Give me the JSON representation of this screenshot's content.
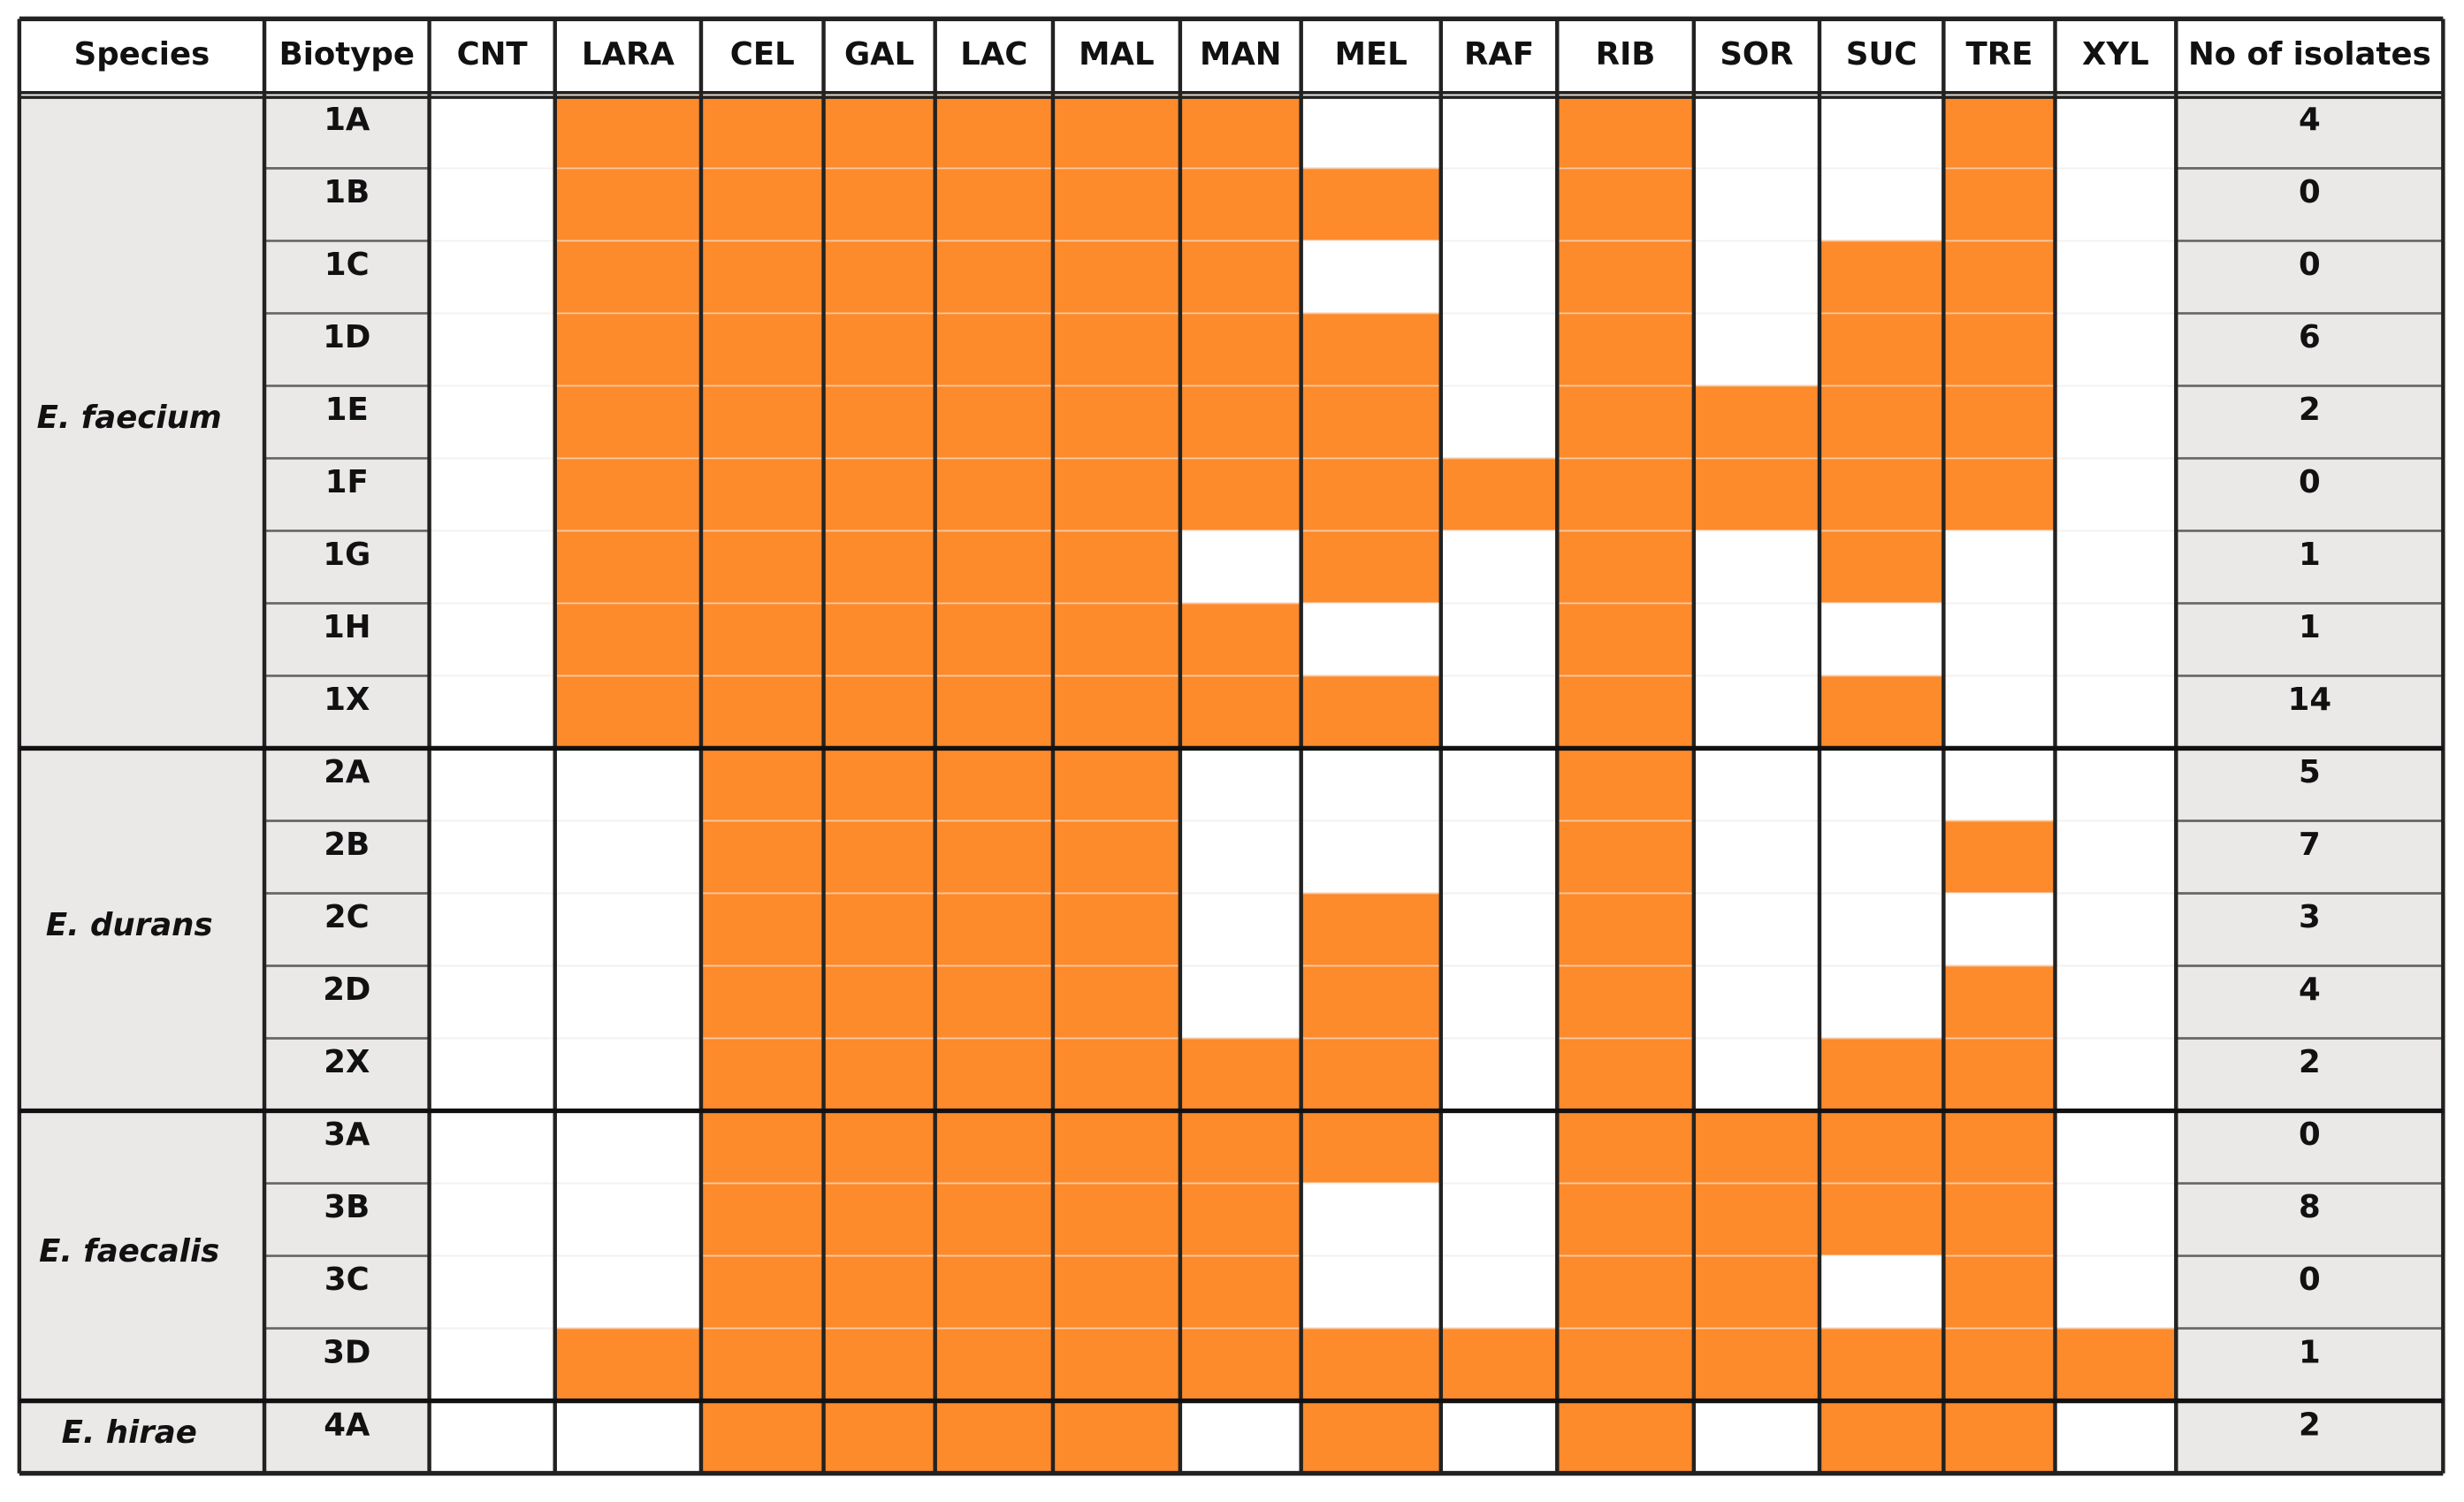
{
  "table": {
    "header": [
      "Species",
      "Biotype",
      "CNT",
      "LARA",
      "CEL",
      "GAL",
      "LAC",
      "MAL",
      "MAN",
      "MEL",
      "RAF",
      "RIB",
      "SOR",
      "SUC",
      "TRE",
      "XYL",
      "No of isolates"
    ],
    "groups": [
      {
        "species": "E. faecium",
        "rows": [
          {
            "biotype": "1A",
            "results": [
              0,
              1,
              1,
              1,
              1,
              1,
              1,
              0,
              0,
              1,
              0,
              0,
              1,
              0
            ],
            "isolates": 4
          },
          {
            "biotype": "1B",
            "results": [
              0,
              1,
              1,
              1,
              1,
              1,
              1,
              1,
              0,
              1,
              0,
              0,
              1,
              0
            ],
            "isolates": 0
          },
          {
            "biotype": "1C",
            "results": [
              0,
              1,
              1,
              1,
              1,
              1,
              1,
              0,
              0,
              1,
              0,
              1,
              1,
              0
            ],
            "isolates": 0
          },
          {
            "biotype": "1D",
            "results": [
              0,
              1,
              1,
              1,
              1,
              1,
              1,
              1,
              0,
              1,
              0,
              1,
              1,
              0
            ],
            "isolates": 6
          },
          {
            "biotype": "1E",
            "results": [
              0,
              1,
              1,
              1,
              1,
              1,
              1,
              1,
              0,
              1,
              1,
              1,
              1,
              0
            ],
            "isolates": 2
          },
          {
            "biotype": "1F",
            "results": [
              0,
              1,
              1,
              1,
              1,
              1,
              1,
              1,
              1,
              1,
              1,
              1,
              1,
              0
            ],
            "isolates": 0
          },
          {
            "biotype": "1G",
            "results": [
              0,
              1,
              1,
              1,
              1,
              1,
              0,
              1,
              0,
              1,
              0,
              1,
              0,
              0
            ],
            "isolates": 1
          },
          {
            "biotype": "1H",
            "results": [
              0,
              1,
              1,
              1,
              1,
              1,
              1,
              0,
              0,
              1,
              0,
              0,
              0,
              0
            ],
            "isolates": 1
          },
          {
            "biotype": "1X",
            "results": [
              0,
              1,
              1,
              1,
              1,
              1,
              1,
              1,
              0,
              1,
              0,
              1,
              0,
              0
            ],
            "isolates": 14
          }
        ]
      },
      {
        "species": "E. durans",
        "rows": [
          {
            "biotype": "2A",
            "results": [
              0,
              0,
              1,
              1,
              1,
              1,
              0,
              0,
              0,
              1,
              0,
              0,
              0,
              0
            ],
            "isolates": 5
          },
          {
            "biotype": "2B",
            "results": [
              0,
              0,
              1,
              1,
              1,
              1,
              0,
              0,
              0,
              1,
              0,
              0,
              1,
              0
            ],
            "isolates": 7
          },
          {
            "biotype": "2C",
            "results": [
              0,
              0,
              1,
              1,
              1,
              1,
              0,
              1,
              0,
              1,
              0,
              0,
              0,
              0
            ],
            "isolates": 3
          },
          {
            "biotype": "2D",
            "results": [
              0,
              0,
              1,
              1,
              1,
              1,
              0,
              1,
              0,
              1,
              0,
              0,
              1,
              0
            ],
            "isolates": 4
          },
          {
            "biotype": "2X",
            "results": [
              0,
              0,
              1,
              1,
              1,
              1,
              1,
              1,
              0,
              1,
              0,
              1,
              1,
              0
            ],
            "isolates": 2
          }
        ]
      },
      {
        "species": "E. faecalis",
        "rows": [
          {
            "biotype": "3A",
            "results": [
              0,
              0,
              1,
              1,
              1,
              1,
              1,
              1,
              0,
              1,
              1,
              1,
              1,
              0
            ],
            "isolates": 0
          },
          {
            "biotype": "3B",
            "results": [
              0,
              0,
              1,
              1,
              1,
              1,
              1,
              0,
              0,
              1,
              1,
              1,
              1,
              0
            ],
            "isolates": 8
          },
          {
            "biotype": "3C",
            "results": [
              0,
              0,
              1,
              1,
              1,
              1,
              1,
              0,
              0,
              1,
              1,
              0,
              1,
              0
            ],
            "isolates": 0
          },
          {
            "biotype": "3D",
            "results": [
              0,
              1,
              1,
              1,
              1,
              1,
              1,
              1,
              1,
              1,
              1,
              1,
              1,
              1
            ],
            "isolates": 1
          }
        ]
      },
      {
        "species": "E. hirae",
        "rows": [
          {
            "biotype": "4A",
            "results": [
              0,
              0,
              1,
              1,
              1,
              1,
              0,
              1,
              0,
              1,
              0,
              1,
              1,
              0
            ],
            "isolates": 2
          }
        ]
      }
    ]
  }
}
